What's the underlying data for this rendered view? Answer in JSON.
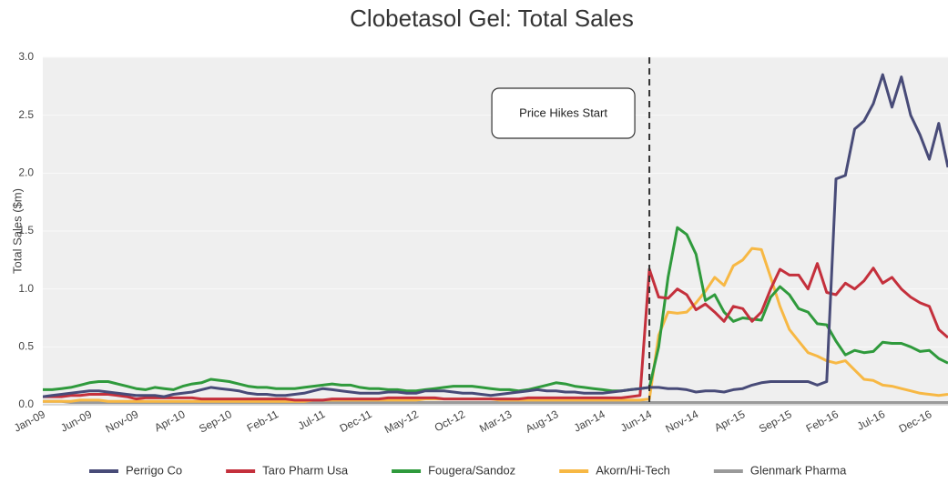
{
  "chart_data": {
    "type": "line",
    "title": "Clobetasol Gel: Total Sales",
    "y_label": "Total Sales ($m)",
    "categories": [
      "Jan-09",
      null,
      null,
      null,
      null,
      "Jun-09",
      null,
      null,
      null,
      null,
      "Nov-09",
      null,
      null,
      null,
      null,
      "Apr-10",
      null,
      null,
      null,
      null,
      "Sep-10",
      null,
      null,
      null,
      null,
      "Feb-11",
      null,
      null,
      null,
      null,
      "Jul-11",
      null,
      null,
      null,
      null,
      "Dec-11",
      null,
      null,
      null,
      null,
      "May-12",
      null,
      null,
      null,
      null,
      "Oct-12",
      null,
      null,
      null,
      null,
      "Mar-13",
      null,
      null,
      null,
      null,
      "Aug-13",
      null,
      null,
      null,
      null,
      "Jan-14",
      null,
      null,
      null,
      null,
      "Jun-14",
      null,
      null,
      null,
      null,
      "Nov-14",
      null,
      null,
      null,
      null,
      "Apr-15",
      null,
      null,
      null,
      null,
      "Sep-15",
      null,
      null,
      null,
      null,
      "Feb-16",
      null,
      null,
      null,
      null,
      "Jul-16",
      null,
      null,
      null,
      null,
      "Dec-16",
      null,
      null
    ],
    "ylim": [
      0,
      3
    ],
    "yticks": [
      {
        "value": 0,
        "label": "0.0"
      },
      0.5,
      {
        "value": 1,
        "label": "1.0"
      },
      1.5,
      {
        "value": 2,
        "label": "2.0"
      },
      2.5,
      {
        "value": 3,
        "label": "3.0"
      }
    ],
    "grid": true,
    "legend": "bottom",
    "annotations": [
      {
        "text": "Price Hikes Start",
        "x": "Jun-14"
      }
    ],
    "series": [
      {
        "name": "Perrigo Co",
        "color": "#484b78",
        "values": [
          0.07,
          0.08,
          0.09,
          0.1,
          0.11,
          0.12,
          0.12,
          0.11,
          0.1,
          0.09,
          0.08,
          0.08,
          0.08,
          0.07,
          0.09,
          0.1,
          0.11,
          0.13,
          0.15,
          0.14,
          0.13,
          0.12,
          0.1,
          0.09,
          0.09,
          0.08,
          0.08,
          0.09,
          0.1,
          0.12,
          0.14,
          0.13,
          0.12,
          0.11,
          0.1,
          0.1,
          0.1,
          0.11,
          0.11,
          0.1,
          0.1,
          0.12,
          0.12,
          0.12,
          0.11,
          0.1,
          0.1,
          0.09,
          0.08,
          0.09,
          0.1,
          0.11,
          0.12,
          0.13,
          0.12,
          0.12,
          0.11,
          0.11,
          0.1,
          0.1,
          0.1,
          0.11,
          0.12,
          0.13,
          0.14,
          0.15,
          0.15,
          0.14,
          0.14,
          0.13,
          0.11,
          0.12,
          0.12,
          0.11,
          0.13,
          0.14,
          0.17,
          0.19,
          0.2,
          0.2,
          0.2,
          0.2,
          0.2,
          0.17,
          0.2,
          1.95,
          1.98,
          2.38,
          2.45,
          2.6,
          2.85,
          2.57,
          2.83,
          2.5,
          2.33,
          2.12,
          2.43,
          2.05
        ]
      },
      {
        "name": "Taro Pharm Usa",
        "color": "#c4303c",
        "values": [
          0.07,
          0.07,
          0.07,
          0.08,
          0.08,
          0.09,
          0.09,
          0.09,
          0.08,
          0.07,
          0.05,
          0.06,
          0.06,
          0.06,
          0.06,
          0.06,
          0.06,
          0.05,
          0.05,
          0.05,
          0.05,
          0.05,
          0.05,
          0.05,
          0.05,
          0.05,
          0.05,
          0.04,
          0.04,
          0.04,
          0.04,
          0.05,
          0.05,
          0.05,
          0.05,
          0.05,
          0.05,
          0.06,
          0.06,
          0.06,
          0.06,
          0.06,
          0.06,
          0.05,
          0.05,
          0.05,
          0.05,
          0.05,
          0.05,
          0.05,
          0.05,
          0.05,
          0.06,
          0.06,
          0.06,
          0.06,
          0.06,
          0.06,
          0.06,
          0.06,
          0.06,
          0.06,
          0.06,
          0.07,
          0.08,
          1.17,
          0.93,
          0.92,
          1.0,
          0.95,
          0.82,
          0.87,
          0.8,
          0.72,
          0.85,
          0.83,
          0.72,
          0.8,
          1.0,
          1.17,
          1.12,
          1.12,
          1.0,
          1.22,
          0.97,
          0.95,
          1.05,
          1.0,
          1.07,
          1.18,
          1.05,
          1.1,
          1.0,
          0.93,
          0.88,
          0.85,
          0.65,
          0.58
        ]
      },
      {
        "name": "Fougera/Sandoz",
        "color": "#2f9a3c",
        "values": [
          0.13,
          0.13,
          0.14,
          0.15,
          0.17,
          0.19,
          0.2,
          0.2,
          0.18,
          0.16,
          0.14,
          0.13,
          0.15,
          0.14,
          0.13,
          0.16,
          0.18,
          0.19,
          0.22,
          0.21,
          0.2,
          0.18,
          0.16,
          0.15,
          0.15,
          0.14,
          0.14,
          0.14,
          0.15,
          0.16,
          0.17,
          0.18,
          0.17,
          0.17,
          0.15,
          0.14,
          0.14,
          0.13,
          0.13,
          0.12,
          0.12,
          0.13,
          0.14,
          0.15,
          0.16,
          0.16,
          0.16,
          0.15,
          0.14,
          0.13,
          0.13,
          0.12,
          0.13,
          0.15,
          0.17,
          0.19,
          0.18,
          0.16,
          0.15,
          0.14,
          0.13,
          0.12,
          0.12,
          0.13,
          0.14,
          0.15,
          0.5,
          1.1,
          1.53,
          1.47,
          1.3,
          0.9,
          0.95,
          0.8,
          0.72,
          0.75,
          0.74,
          0.73,
          0.93,
          1.02,
          0.95,
          0.83,
          0.8,
          0.7,
          0.69,
          0.55,
          0.43,
          0.47,
          0.45,
          0.46,
          0.54,
          0.53,
          0.53,
          0.5,
          0.46,
          0.47,
          0.4,
          0.36
        ]
      },
      {
        "name": "Akorn/Hi-Tech",
        "color": "#f7b844",
        "values": [
          0.03,
          0.03,
          0.03,
          0.03,
          0.04,
          0.04,
          0.04,
          0.03,
          0.03,
          0.03,
          0.03,
          0.03,
          0.03,
          0.03,
          0.03,
          0.03,
          0.03,
          0.03,
          0.03,
          0.03,
          0.03,
          0.03,
          0.03,
          0.03,
          0.03,
          0.03,
          0.03,
          0.03,
          0.03,
          0.04,
          0.04,
          0.04,
          0.04,
          0.04,
          0.04,
          0.04,
          0.04,
          0.04,
          0.04,
          0.04,
          0.04,
          0.05,
          0.05,
          0.05,
          0.05,
          0.05,
          0.05,
          0.05,
          0.05,
          0.04,
          0.04,
          0.04,
          0.04,
          0.04,
          0.04,
          0.04,
          0.04,
          0.04,
          0.04,
          0.04,
          0.04,
          0.04,
          0.04,
          0.04,
          0.04,
          0.05,
          0.6,
          0.8,
          0.79,
          0.8,
          0.88,
          0.98,
          1.1,
          1.03,
          1.2,
          1.25,
          1.35,
          1.34,
          1.1,
          0.85,
          0.65,
          0.55,
          0.45,
          0.42,
          0.38,
          0.36,
          0.38,
          0.3,
          0.22,
          0.21,
          0.17,
          0.16,
          0.14,
          0.12,
          0.1,
          0.09,
          0.08,
          0.09
        ]
      },
      {
        "name": "Glenmark Pharma",
        "color": "#9a9a9a",
        "values": [
          0.03,
          0.03,
          0.03,
          0.02,
          0.02,
          0.02,
          0.02,
          0.02,
          0.02,
          0.02,
          0.02,
          0.02,
          0.02,
          0.02,
          0.02,
          0.02,
          0.02,
          0.02,
          0.02,
          0.02,
          0.02,
          0.02,
          0.02,
          0.02,
          0.02,
          0.02,
          0.02,
          0.02,
          0.02,
          0.02,
          0.02,
          0.02,
          0.02,
          0.02,
          0.02,
          0.02,
          0.02,
          0.02,
          0.02,
          0.02,
          0.02,
          0.02,
          0.02,
          0.02,
          0.02,
          0.02,
          0.02,
          0.02,
          0.02,
          0.02,
          0.02,
          0.02,
          0.02,
          0.02,
          0.02,
          0.02,
          0.02,
          0.02,
          0.02,
          0.02,
          0.02,
          0.02,
          0.02,
          0.02,
          0.02,
          0.02,
          0.02,
          0.02,
          0.02,
          0.02,
          0.02,
          0.02,
          0.02,
          0.02,
          0.02,
          0.02,
          0.02,
          0.02,
          0.02,
          0.02,
          0.02,
          0.02,
          0.02,
          0.02,
          0.02,
          0.02,
          0.02,
          0.02,
          0.02,
          0.02,
          0.02,
          0.02,
          0.02,
          0.02,
          0.02,
          0.02,
          0.02,
          0.02
        ]
      }
    ]
  }
}
